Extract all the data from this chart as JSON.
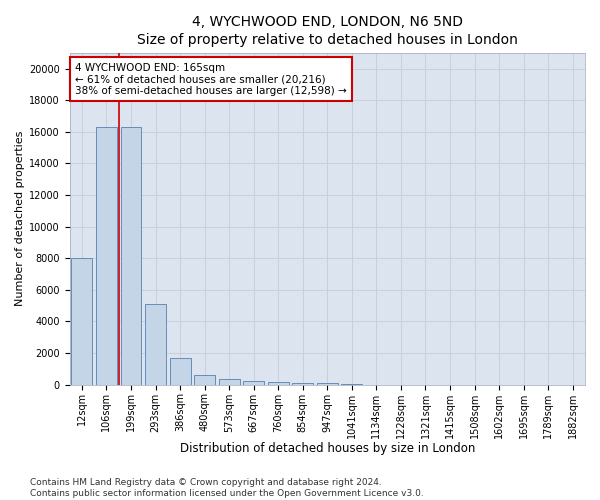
{
  "title": "4, WYCHWOOD END, LONDON, N6 5ND",
  "subtitle": "Size of property relative to detached houses in London",
  "xlabel": "Distribution of detached houses by size in London",
  "ylabel": "Number of detached properties",
  "categories": [
    "12sqm",
    "106sqm",
    "199sqm",
    "293sqm",
    "386sqm",
    "480sqm",
    "573sqm",
    "667sqm",
    "760sqm",
    "854sqm",
    "947sqm",
    "1041sqm",
    "1134sqm",
    "1228sqm",
    "1321sqm",
    "1415sqm",
    "1508sqm",
    "1602sqm",
    "1695sqm",
    "1789sqm",
    "1882sqm"
  ],
  "values": [
    8000,
    16300,
    16300,
    5100,
    1700,
    600,
    380,
    240,
    180,
    120,
    90,
    60,
    0,
    0,
    0,
    0,
    0,
    0,
    0,
    0,
    0
  ],
  "bar_color": "#c5d5e8",
  "bar_edgecolor": "#5580b0",
  "annotation_text": "4 WYCHWOOD END: 165sqm\n← 61% of detached houses are smaller (20,216)\n38% of semi-detached houses are larger (12,598) →",
  "annotation_box_color": "#ffffff",
  "annotation_box_edgecolor": "#cc0000",
  "vline_color": "#cc0000",
  "vline_x": 1.5,
  "ylim": [
    0,
    21000
  ],
  "yticks": [
    0,
    2000,
    4000,
    6000,
    8000,
    10000,
    12000,
    14000,
    16000,
    18000,
    20000
  ],
  "grid_color": "#c8d0dc",
  "bg_color": "#dce4f0",
  "footer": "Contains HM Land Registry data © Crown copyright and database right 2024.\nContains public sector information licensed under the Open Government Licence v3.0.",
  "title_fontsize": 10,
  "xlabel_fontsize": 8.5,
  "ylabel_fontsize": 8,
  "tick_fontsize": 7,
  "annotation_fontsize": 7.5,
  "footer_fontsize": 6.5
}
